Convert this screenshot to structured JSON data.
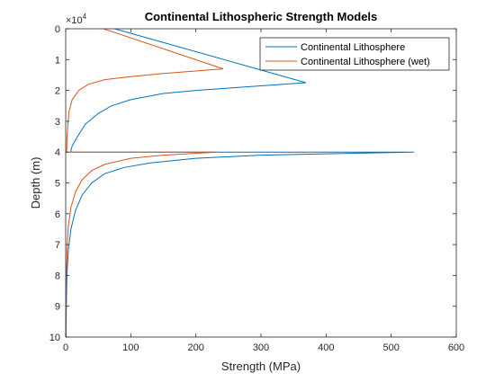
{
  "chart_data": {
    "type": "line",
    "title": "Continental Lithospheric Strength Models",
    "xlabel": "Strength (MPa)",
    "ylabel": "Depth (m)",
    "y_exponent_label": "×10",
    "y_exponent_power": "4",
    "xlim": [
      0,
      600
    ],
    "ylim": [
      0,
      100000
    ],
    "y_reversed": true,
    "x_ticks": [
      0,
      100,
      200,
      300,
      400,
      500,
      600
    ],
    "x_tick_labels": [
      "0",
      "100",
      "200",
      "300",
      "400",
      "500",
      "600"
    ],
    "y_ticks": [
      0,
      10000,
      20000,
      30000,
      40000,
      50000,
      60000,
      70000,
      80000,
      90000,
      100000
    ],
    "y_tick_labels": [
      "0",
      "1",
      "2",
      "3",
      "4",
      "5",
      "6",
      "7",
      "8",
      "9",
      "10"
    ],
    "grid": false,
    "legend_position": "top-right",
    "series": [
      {
        "name": "Continental Lithosphere",
        "color": "#0072BD",
        "points": [
          [
            75,
            0
          ],
          [
            369,
            17500
          ],
          [
            300,
            18500
          ],
          [
            200,
            20000
          ],
          [
            150,
            21000
          ],
          [
            100,
            23000
          ],
          [
            70,
            25000
          ],
          [
            50,
            27500
          ],
          [
            30,
            31000
          ],
          [
            18,
            35000
          ],
          [
            10,
            38000
          ],
          [
            8,
            39500
          ],
          [
            8,
            40000
          ],
          [
            535,
            40000
          ],
          [
            300,
            41000
          ],
          [
            200,
            42000
          ],
          [
            130,
            43500
          ],
          [
            90,
            45000
          ],
          [
            60,
            47000
          ],
          [
            40,
            50000
          ],
          [
            25,
            54000
          ],
          [
            15,
            59000
          ],
          [
            8,
            65000
          ],
          [
            4,
            72000
          ],
          [
            2,
            80000
          ],
          [
            1,
            90000
          ],
          [
            0.5,
            100000
          ]
        ]
      },
      {
        "name": "Continental Lithosphere (wet)",
        "color": "#D95319",
        "points": [
          [
            58,
            0
          ],
          [
            242,
            13000
          ],
          [
            150,
            14500
          ],
          [
            100,
            15500
          ],
          [
            60,
            16500
          ],
          [
            35,
            18000
          ],
          [
            20,
            20000
          ],
          [
            10,
            23000
          ],
          [
            5,
            27000
          ],
          [
            3,
            32000
          ],
          [
            2,
            36000
          ],
          [
            1.5,
            39500
          ],
          [
            1.5,
            40000
          ],
          [
            232,
            40000
          ],
          [
            150,
            41000
          ],
          [
            100,
            42000
          ],
          [
            60,
            44000
          ],
          [
            40,
            46000
          ],
          [
            25,
            49000
          ],
          [
            15,
            53000
          ],
          [
            8,
            58000
          ],
          [
            4,
            64000
          ],
          [
            2,
            72000
          ],
          [
            1,
            82000
          ],
          [
            0.5,
            100000
          ]
        ]
      }
    ]
  }
}
